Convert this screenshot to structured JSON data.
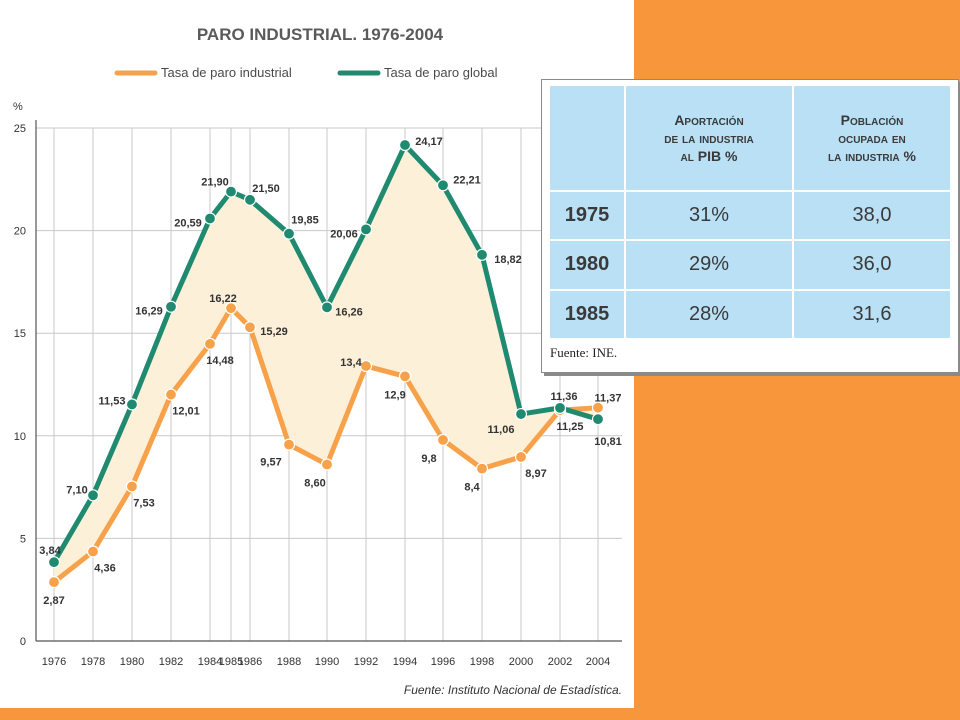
{
  "chart_data": {
    "type": "line",
    "title": "PARO INDUSTRIAL. 1976-2004",
    "ylabel": "%",
    "xlabel": "",
    "ylim": [
      0,
      25
    ],
    "y_ticks": [
      "0",
      "5",
      "10",
      "15",
      "20",
      "25"
    ],
    "grid": true,
    "legend_position": "top",
    "area_between_series": true,
    "x": [
      "1976",
      "1978",
      "1980",
      "1982",
      "1984",
      "1985",
      "1986",
      "1988",
      "1990",
      "1992",
      "1994",
      "1996",
      "1998",
      "2000",
      "2002",
      "2004"
    ],
    "series": [
      {
        "name": "Tasa de paro industrial",
        "color": "#f7a24b",
        "values": [
          2.87,
          4.36,
          7.53,
          12.01,
          14.48,
          16.22,
          15.29,
          9.57,
          8.6,
          13.4,
          12.9,
          9.8,
          8.4,
          8.97,
          11.25,
          11.37
        ],
        "labels": [
          "2,87",
          "4,36",
          "7,53",
          "12,01",
          "14,48",
          "16,22",
          "15,29",
          "9,57",
          "8,60",
          "13,4",
          "12,9",
          "9,8",
          "8,4",
          "8,97",
          "11,25",
          "11,37"
        ]
      },
      {
        "name": "Tasa de paro global",
        "color": "#1f8a70",
        "values": [
          3.84,
          7.1,
          11.53,
          16.29,
          20.59,
          21.9,
          21.5,
          19.85,
          16.26,
          20.06,
          24.17,
          22.21,
          18.82,
          11.06,
          11.36,
          10.81
        ],
        "labels": [
          "3,84",
          "7,10",
          "11,53",
          "16,29",
          "20,59",
          "21,90",
          "21,50",
          "19,85",
          "16,26",
          "20,06",
          "24,17",
          "22,21",
          "18,82",
          "11,06",
          "11,36",
          "10,81"
        ]
      }
    ],
    "source": "Fuente: Instituto Nacional de Estadística."
  },
  "table": {
    "headers": [
      "",
      "Aportación\nde la industria\nal PIB %",
      "Población\nocupada en\nla industria %"
    ],
    "rows": [
      {
        "year": "1975",
        "pib": "31%",
        "poblacion": "38,0"
      },
      {
        "year": "1980",
        "pib": "29%",
        "poblacion": "36,0"
      },
      {
        "year": "1985",
        "pib": "28%",
        "poblacion": "31,6"
      }
    ],
    "source": "Fuente: INE."
  },
  "colors": {
    "background": "#f7963a",
    "fill_area": "#fdf0d8",
    "table_bg": "#b9e0f5"
  }
}
